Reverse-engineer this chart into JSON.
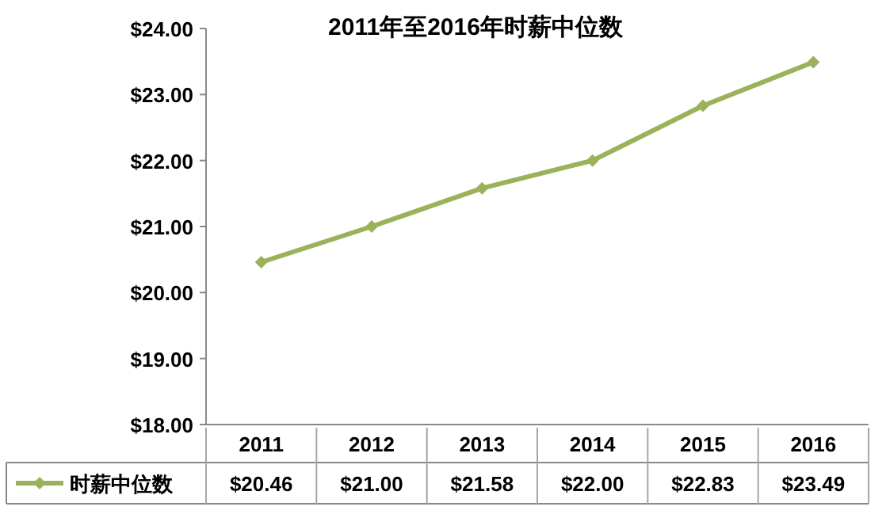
{
  "chart_data": {
    "type": "line",
    "title": "2011年至2016年时薪中位数",
    "categories": [
      "2011",
      "2012",
      "2013",
      "2014",
      "2015",
      "2016"
    ],
    "series": [
      {
        "name": "时薪中位数",
        "color": "#9bb25a",
        "values": [
          20.46,
          21.0,
          21.58,
          22.0,
          22.83,
          23.49
        ],
        "value_labels": [
          "$20.46",
          "$21.00",
          "$21.58",
          "$22.00",
          "$22.83",
          "$23.49"
        ]
      }
    ],
    "ylim": [
      18,
      24
    ],
    "yticks": [
      {
        "value": 18,
        "label": "$18.00"
      },
      {
        "value": 19,
        "label": "$19.00"
      },
      {
        "value": 20,
        "label": "$20.00"
      },
      {
        "value": 21,
        "label": "$21.00"
      },
      {
        "value": 22,
        "label": "$22.00"
      },
      {
        "value": 23,
        "label": "$23.00"
      },
      {
        "value": 24,
        "label": "$24.00"
      }
    ],
    "marker": "diamond",
    "line_style": "solid",
    "legend": "bottom left",
    "grid": false
  }
}
